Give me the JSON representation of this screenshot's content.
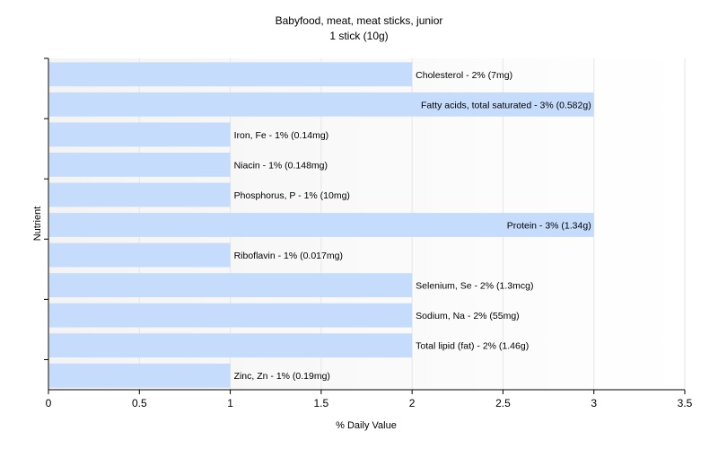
{
  "chart_data": {
    "type": "bar",
    "orientation": "horizontal",
    "title": "Babyfood, meat, meat sticks, junior",
    "subtitle": "1 stick (10g)",
    "xlabel": "% Daily Value",
    "ylabel": "Nutrient",
    "xlim": [
      0,
      3.5
    ],
    "xticks": [
      "0",
      "0.5",
      "1",
      "1.5",
      "2",
      "2.5",
      "3",
      "3.5"
    ],
    "grid": true,
    "bar_color": "#c6dcfc",
    "categories": [
      "Cholesterol",
      "Fatty acids, total saturated",
      "Iron, Fe",
      "Niacin",
      "Phosphorus, P",
      "Protein",
      "Riboflavin",
      "Selenium, Se",
      "Sodium, Na",
      "Total lipid (fat)",
      "Zinc, Zn"
    ],
    "values": [
      2,
      3,
      1,
      1,
      1,
      3,
      1,
      2,
      2,
      2,
      1
    ],
    "labels": [
      "Cholesterol - 2% (7mg)",
      "Fatty acids, total saturated - 3% (0.582g)",
      "Iron, Fe - 1% (0.14mg)",
      "Niacin - 1% (0.148mg)",
      "Phosphorus, P - 1% (10mg)",
      "Protein - 3% (1.34g)",
      "Riboflavin - 1% (0.017mg)",
      "Selenium, Se - 2% (1.3mcg)",
      "Sodium, Na - 2% (55mg)",
      "Total lipid (fat) - 2% (1.46g)",
      "Zinc, Zn - 1% (0.19mg)"
    ]
  }
}
